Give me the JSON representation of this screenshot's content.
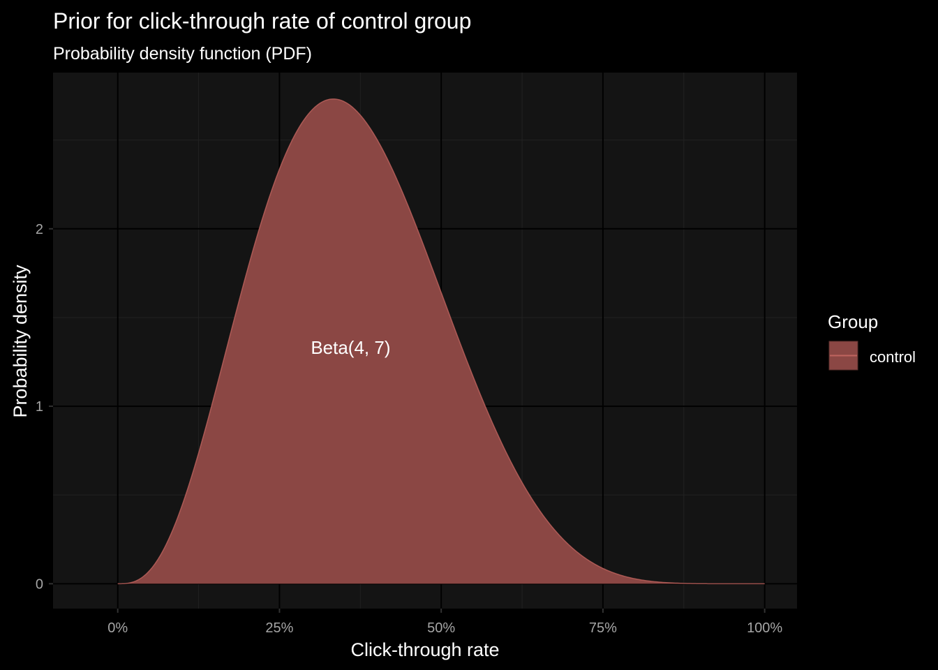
{
  "chart_data": {
    "type": "area",
    "title": "Prior for click-through rate of control group",
    "subtitle": "Probability density function (PDF)",
    "xlabel": "Click-through rate",
    "ylabel": "Probability density",
    "xlim": [
      -0.1,
      1.05
    ],
    "ylim": [
      -0.14,
      2.88
    ],
    "x_ticks": [
      {
        "value": 0,
        "label": "0%"
      },
      {
        "value": 0.25,
        "label": "25%"
      },
      {
        "value": 0.5,
        "label": "50%"
      },
      {
        "value": 0.75,
        "label": "75%"
      },
      {
        "value": 1.0,
        "label": "100%"
      }
    ],
    "y_ticks": [
      {
        "value": 0,
        "label": "0"
      },
      {
        "value": 1,
        "label": "1"
      },
      {
        "value": 2,
        "label": "2"
      }
    ],
    "grid": true,
    "legend": {
      "title": "Group",
      "position": "right",
      "entries": [
        "control"
      ]
    },
    "series": [
      {
        "name": "control",
        "distribution": "beta",
        "alpha": 4,
        "beta": 7,
        "color": "#8b4744",
        "line_color": "#c0645f",
        "annotation": {
          "text": "Beta(4, 7)",
          "x": 0.36,
          "y": 1.33
        }
      }
    ]
  },
  "colors": {
    "background": "#000000",
    "panel": "#141414",
    "grid_major": "#000000",
    "grid_minor": "#222222",
    "text": "#ffffff",
    "tick_text": "#a6a6a6"
  }
}
